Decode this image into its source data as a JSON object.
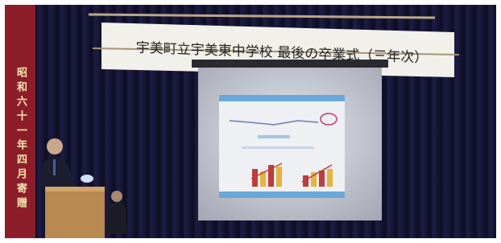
{
  "banner": {
    "title": "宇美町立宇美東中学校 最後の卒業式（三年次）"
  },
  "side_banner": {
    "text": "昭和六十一年四月寄贈"
  }
}
